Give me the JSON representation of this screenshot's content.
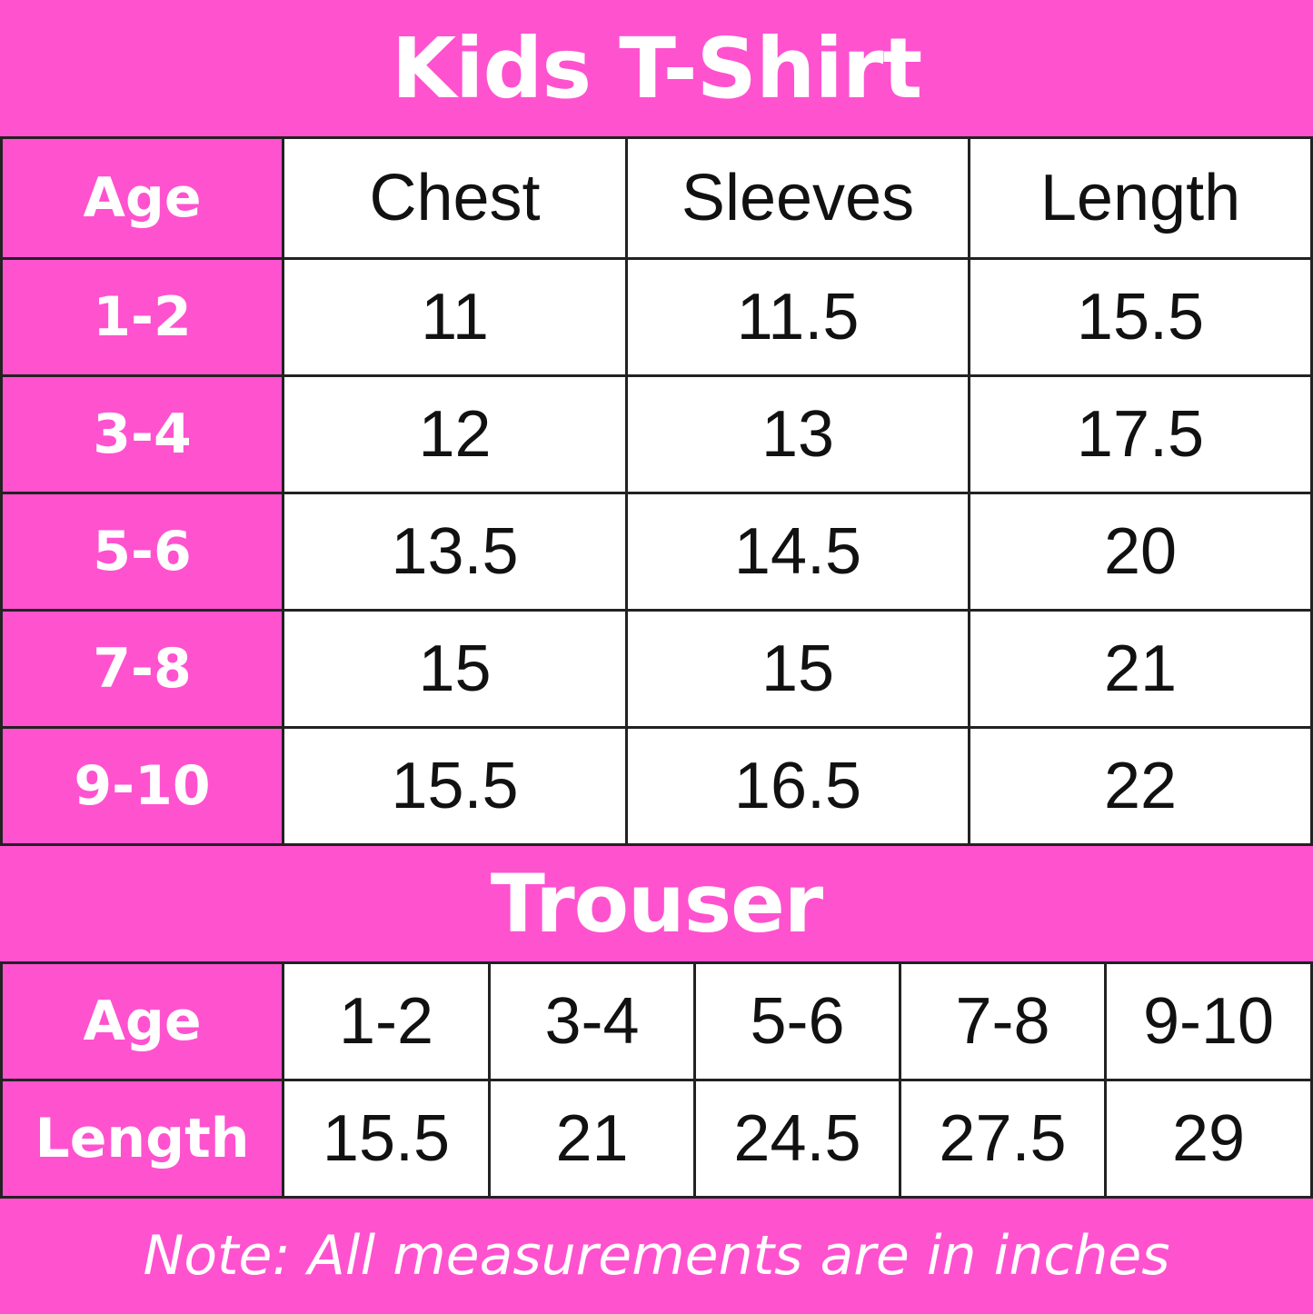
{
  "colors": {
    "accent": "#FF52CF",
    "border": "#222222",
    "text": "#111111"
  },
  "tshirt": {
    "title": "Kids T-Shirt",
    "headers": [
      "Age",
      "Chest",
      "Sleeves",
      "Length"
    ],
    "rows": [
      [
        "1-2",
        "11",
        "11.5",
        "15.5"
      ],
      [
        "3-4",
        "12",
        "13",
        "17.5"
      ],
      [
        "5-6",
        "13.5",
        "14.5",
        "20"
      ],
      [
        "7-8",
        "15",
        "15",
        "21"
      ],
      [
        "9-10",
        "15.5",
        "16.5",
        "22"
      ]
    ]
  },
  "trouser": {
    "title": "Trouser",
    "rows": [
      [
        "Age",
        "1-2",
        "3-4",
        "5-6",
        "7-8",
        "9-10"
      ],
      [
        "Length",
        "15.5",
        "21",
        "24.5",
        "27.5",
        "29"
      ]
    ]
  },
  "note": "Note: All measurements are in inches"
}
